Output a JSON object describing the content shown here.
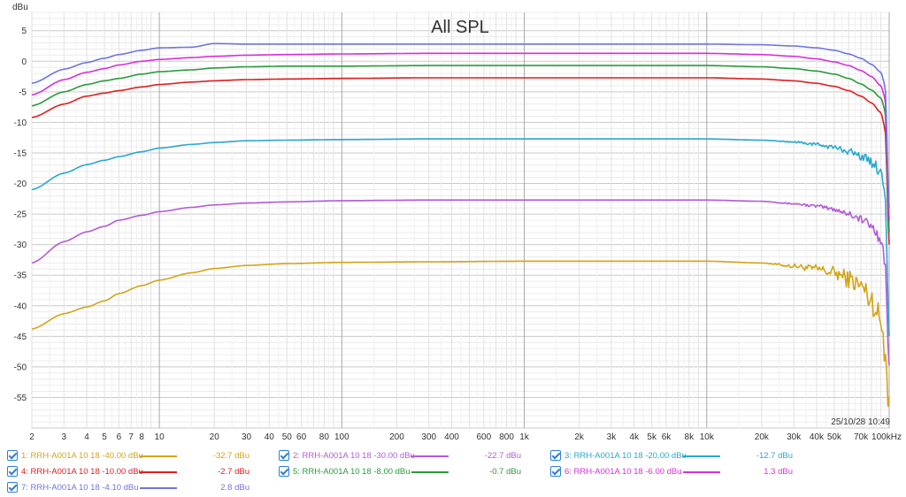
{
  "chart_data": {
    "type": "line",
    "title": "All SPL",
    "ylabel": "dBu",
    "xlabel": "",
    "x_scale": "log",
    "xlim": [
      2,
      100000
    ],
    "ylim": [
      -60,
      8
    ],
    "grid": true,
    "x_ticks": [
      {
        "v": 2,
        "label": "2"
      },
      {
        "v": 3,
        "label": "3"
      },
      {
        "v": 4,
        "label": "4"
      },
      {
        "v": 5,
        "label": "5"
      },
      {
        "v": 6,
        "label": "6"
      },
      {
        "v": 7,
        "label": "7"
      },
      {
        "v": 8,
        "label": "8"
      },
      {
        "v": 10,
        "label": "10"
      },
      {
        "v": 20,
        "label": "20"
      },
      {
        "v": 30,
        "label": "30"
      },
      {
        "v": 40,
        "label": "40"
      },
      {
        "v": 50,
        "label": "50"
      },
      {
        "v": 60,
        "label": "60"
      },
      {
        "v": 80,
        "label": "80"
      },
      {
        "v": 100,
        "label": "100"
      },
      {
        "v": 200,
        "label": "200"
      },
      {
        "v": 300,
        "label": "300"
      },
      {
        "v": 400,
        "label": "400"
      },
      {
        "v": 600,
        "label": "600"
      },
      {
        "v": 800,
        "label": "800"
      },
      {
        "v": 1000,
        "label": "1k"
      },
      {
        "v": 2000,
        "label": "2k"
      },
      {
        "v": 3000,
        "label": "3k"
      },
      {
        "v": 4000,
        "label": "4k"
      },
      {
        "v": 5000,
        "label": "5k"
      },
      {
        "v": 6000,
        "label": "6k"
      },
      {
        "v": 8000,
        "label": "8k"
      },
      {
        "v": 10000,
        "label": "10k"
      },
      {
        "v": 20000,
        "label": "20k"
      },
      {
        "v": 30000,
        "label": "30k"
      },
      {
        "v": 40000,
        "label": "40k"
      },
      {
        "v": 50000,
        "label": "50k"
      },
      {
        "v": 70000,
        "label": "70k"
      },
      {
        "v": 100000,
        "label": "100kHz"
      }
    ],
    "y_ticks": [
      5,
      0,
      -5,
      -10,
      -15,
      -20,
      -25,
      -30,
      -35,
      -40,
      -45,
      -50,
      -55
    ],
    "timestamp": "25/10/28 10:49",
    "series": [
      {
        "name": "1: RRH-A001A 10 18 -40.00 dBu",
        "value_label": "-32.7 dBu",
        "color": "#d4a418",
        "noisy": true,
        "x": [
          2,
          3,
          4,
          5,
          6,
          8,
          10,
          15,
          20,
          30,
          50,
          100,
          300,
          1000,
          3000,
          10000,
          20000,
          30000,
          40000,
          50000,
          60000,
          70000,
          80000,
          90000,
          95000,
          100000
        ],
        "y": [
          -43.8,
          -41.3,
          -40.2,
          -39.2,
          -38.0,
          -36.7,
          -35.8,
          -34.6,
          -33.9,
          -33.4,
          -33.1,
          -32.9,
          -32.8,
          -32.7,
          -32.7,
          -32.7,
          -33.0,
          -33.5,
          -34.0,
          -34.6,
          -35.6,
          -36.8,
          -39.0,
          -42.5,
          -47.0,
          -56.0
        ]
      },
      {
        "name": "2: RRH-A001A 10 18 -30.00 dBu",
        "value_label": "-22.7 dBu",
        "color": "#b45ad8",
        "noisy": true,
        "x": [
          2,
          3,
          4,
          5,
          6,
          8,
          10,
          15,
          20,
          30,
          50,
          100,
          300,
          1000,
          3000,
          10000,
          20000,
          30000,
          40000,
          50000,
          60000,
          70000,
          80000,
          90000,
          95000,
          100000
        ],
        "y": [
          -33.0,
          -29.5,
          -27.9,
          -27.0,
          -26.0,
          -25.2,
          -24.6,
          -23.9,
          -23.5,
          -23.2,
          -23.0,
          -22.8,
          -22.7,
          -22.7,
          -22.7,
          -22.7,
          -22.9,
          -23.3,
          -23.7,
          -24.2,
          -24.9,
          -25.8,
          -27.0,
          -29.0,
          -33.0,
          -50.0
        ]
      },
      {
        "name": "3: RRH-A001A 10 18 -20.00 dBu",
        "value_label": "-12.7 dBu",
        "color": "#29a8cf",
        "noisy": true,
        "x": [
          2,
          3,
          4,
          5,
          6,
          8,
          10,
          15,
          20,
          30,
          50,
          100,
          300,
          1000,
          3000,
          10000,
          20000,
          30000,
          40000,
          50000,
          60000,
          70000,
          80000,
          90000,
          95000,
          100000
        ],
        "y": [
          -21.0,
          -18.3,
          -16.9,
          -16.2,
          -15.6,
          -14.8,
          -14.2,
          -13.6,
          -13.3,
          -13.0,
          -12.9,
          -12.8,
          -12.7,
          -12.7,
          -12.7,
          -12.7,
          -12.9,
          -13.2,
          -13.6,
          -14.1,
          -14.7,
          -15.5,
          -16.5,
          -18.0,
          -21.0,
          -45.0
        ]
      },
      {
        "name": "4: RRH-A001A 10 18 -10.00 dBu",
        "value_label": "-2.7 dBu",
        "color": "#dd1f1f",
        "noisy": false,
        "x": [
          2,
          3,
          4,
          5,
          6,
          8,
          10,
          15,
          20,
          30,
          50,
          100,
          300,
          1000,
          3000,
          10000,
          20000,
          30000,
          40000,
          50000,
          60000,
          70000,
          80000,
          90000,
          95000,
          100000
        ],
        "y": [
          -9.2,
          -7.0,
          -5.7,
          -5.2,
          -4.8,
          -4.2,
          -3.8,
          -3.4,
          -3.2,
          -3.0,
          -2.9,
          -2.8,
          -2.7,
          -2.7,
          -2.7,
          -2.7,
          -2.9,
          -3.2,
          -3.6,
          -4.1,
          -4.8,
          -5.7,
          -6.8,
          -8.4,
          -11.0,
          -30.0
        ]
      },
      {
        "name": "5: RRH-A001A 10 18 -8.00 dBu",
        "value_label": "-0.7 dBu",
        "color": "#2a9b3c",
        "noisy": false,
        "x": [
          2,
          3,
          4,
          5,
          6,
          8,
          10,
          15,
          20,
          30,
          50,
          100,
          300,
          1000,
          3000,
          10000,
          20000,
          30000,
          40000,
          50000,
          60000,
          70000,
          80000,
          90000,
          95000,
          100000
        ],
        "y": [
          -7.3,
          -5.0,
          -3.8,
          -3.2,
          -2.8,
          -2.1,
          -1.7,
          -1.4,
          -1.1,
          -0.9,
          -0.8,
          -0.8,
          -0.7,
          -0.7,
          -0.7,
          -0.7,
          -0.9,
          -1.2,
          -1.6,
          -2.1,
          -2.8,
          -3.7,
          -4.7,
          -6.0,
          -8.0,
          -28.0
        ]
      },
      {
        "name": "6: RRH-A001A 10 18 -6.00 dBu",
        "value_label": "1.3 dBu",
        "color": "#d631d6",
        "noisy": false,
        "x": [
          2,
          3,
          4,
          5,
          6,
          8,
          10,
          15,
          20,
          30,
          50,
          100,
          300,
          1000,
          3000,
          10000,
          20000,
          30000,
          40000,
          50000,
          60000,
          70000,
          80000,
          90000,
          95000,
          100000
        ],
        "y": [
          -5.5,
          -3.0,
          -1.8,
          -1.2,
          -0.6,
          0.0,
          0.3,
          0.6,
          0.8,
          1.0,
          1.1,
          1.2,
          1.3,
          1.3,
          1.3,
          1.3,
          1.1,
          0.8,
          0.4,
          -0.1,
          -0.7,
          -1.5,
          -2.5,
          -4.0,
          -6.0,
          -26.0
        ]
      },
      {
        "name": "7: RRH-A001A 10 18 -4.10 dBu",
        "value_label": "2.8 dBu",
        "color": "#6f74e0",
        "noisy": false,
        "x": [
          2,
          3,
          4,
          5,
          6,
          8,
          10,
          15,
          20,
          30,
          50,
          100,
          300,
          1000,
          3000,
          10000,
          20000,
          30000,
          40000,
          50000,
          60000,
          70000,
          80000,
          90000,
          95000,
          100000
        ],
        "y": [
          -3.6,
          -1.3,
          -0.2,
          0.5,
          1.1,
          1.8,
          2.2,
          2.3,
          2.9,
          2.8,
          2.8,
          2.8,
          2.8,
          2.8,
          2.8,
          2.8,
          2.7,
          2.5,
          2.2,
          1.8,
          1.2,
          0.5,
          -0.5,
          -1.8,
          -4.0,
          -24.0
        ]
      }
    ]
  }
}
